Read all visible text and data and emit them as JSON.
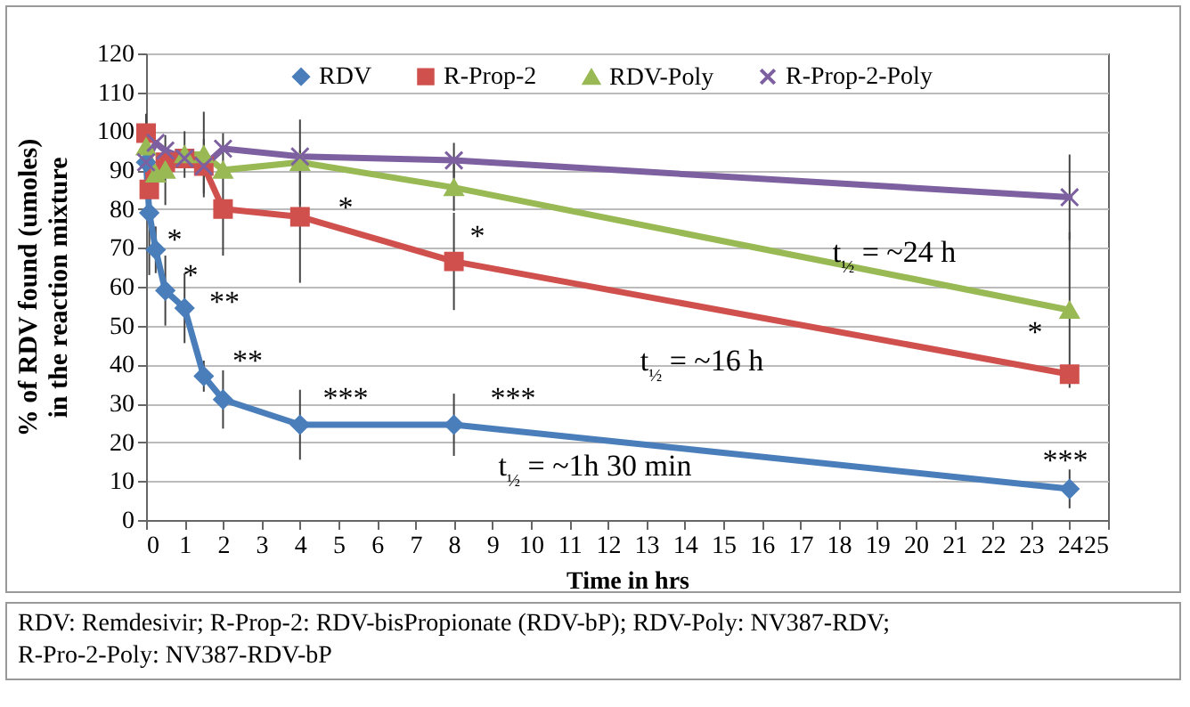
{
  "chart_data": {
    "type": "line",
    "xlabel": "Time in hrs",
    "ylabel": "% of RDV found (umoles) in the reaction mixture",
    "xlim": [
      0,
      25
    ],
    "xticks": [
      0,
      1,
      2,
      3,
      4,
      5,
      6,
      7,
      8,
      9,
      10,
      11,
      12,
      13,
      14,
      15,
      16,
      17,
      18,
      19,
      20,
      21,
      22,
      23,
      24,
      25
    ],
    "ylim": [
      0,
      120
    ],
    "yticks": [
      0,
      10,
      20,
      30,
      40,
      50,
      60,
      70,
      80,
      90,
      100,
      110,
      120
    ],
    "grid": "y",
    "legend": "top",
    "series": [
      {
        "name": "RDV",
        "color": "#4a7ebb",
        "marker": "diamond",
        "x": [
          0,
          0.083,
          0.25,
          0.5,
          1,
          1.5,
          2,
          4,
          8,
          24
        ],
        "values": [
          92,
          79,
          69.5,
          59,
          54.5,
          37,
          31,
          24.5,
          24.5,
          8
        ],
        "errors": [
          null,
          16,
          6,
          9,
          9,
          4,
          7.5,
          9,
          8,
          5
        ]
      },
      {
        "name": "R-Prop-2",
        "color": "#d0504d",
        "marker": "square",
        "x": [
          0,
          0.083,
          0.5,
          1,
          1.5,
          2,
          4,
          8,
          24
        ],
        "values": [
          99.5,
          85,
          92,
          93,
          91,
          80,
          78,
          66.5,
          37.5
        ],
        "errors": [
          5,
          null,
          null,
          null,
          7,
          12,
          17,
          12.5,
          2
        ]
      },
      {
        "name": "RDV-Poly",
        "color": "#98b954",
        "marker": "triangle",
        "x": [
          0,
          0.25,
          0.5,
          1,
          1.5,
          2,
          4,
          8,
          24
        ],
        "values": [
          96,
          89,
          90,
          94,
          94,
          90,
          92,
          85.5,
          54
        ],
        "errors": [
          6,
          null,
          9,
          6,
          11,
          null,
          11,
          6,
          20
        ]
      },
      {
        "name": "R-Prop-2-Poly",
        "color": "#7d60a0",
        "marker": "cross",
        "x": [
          0,
          0.25,
          0.5,
          1,
          1.5,
          2,
          4,
          8,
          24
        ],
        "values": [
          92,
          97,
          95,
          93,
          91,
          95.5,
          93.5,
          92.5,
          83
        ],
        "errors": [
          null,
          null,
          null,
          null,
          null,
          4,
          null,
          4.5,
          11
        ]
      }
    ],
    "annotations": [
      "*",
      "*",
      "**",
      "**",
      "***",
      "***",
      "***",
      "*",
      "*",
      "*",
      "t$_{½}$ = ~24 h",
      "t$_{½}$ = ~16 h",
      "t$_{½}$ = ~1h 30 min",
      "RDV: Remdesivir; R-Prop-2: RDV-bisPropionate (RDV-bP); RDV-Poly: NV387-RDV; R-Pro-2-Poly: NV387-RDV-bP"
    ]
  }
}
